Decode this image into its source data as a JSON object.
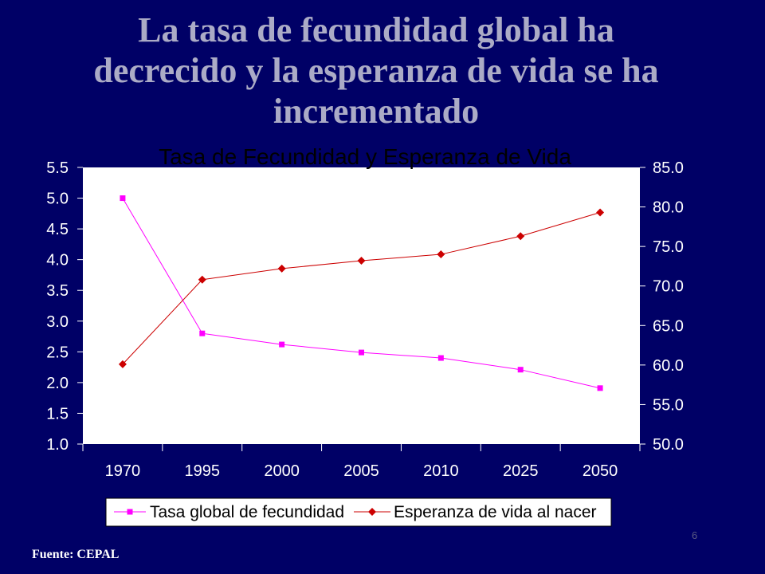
{
  "slide": {
    "title_lines": [
      "La tasa de fecundidad global ha",
      "decrecido y la esperanza de vida se ha",
      "incrementado"
    ],
    "source": "Fuente: CEPAL",
    "page_number": "6"
  },
  "colors": {
    "background": "#000066",
    "title": "#ababc6",
    "plot_background": "#ffffff",
    "axis_ticks": "#ffffff"
  },
  "chart_data": {
    "type": "line",
    "title": "Tasa de Fecundidad y Esperanza de Vida",
    "categories": [
      "1970",
      "1995",
      "2000",
      "2005",
      "2010",
      "2025",
      "2050"
    ],
    "series": [
      {
        "name": "Tasa global de fecundidad",
        "axis": "left",
        "color": "#ff00ff",
        "values": [
          5.0,
          2.8,
          2.62,
          2.49,
          2.4,
          2.21,
          1.91
        ]
      },
      {
        "name": "Esperanza de vida al nacer",
        "axis": "right",
        "color": "#cc0000",
        "values": [
          60.1,
          70.8,
          72.2,
          73.2,
          74.0,
          76.3,
          79.3
        ]
      }
    ],
    "y_left": {
      "lim": [
        1.0,
        5.5
      ],
      "ticks": [
        "1.0",
        "1.5",
        "2.0",
        "2.5",
        "3.0",
        "3.5",
        "4.0",
        "4.5",
        "5.0",
        "5.5"
      ]
    },
    "y_right": {
      "lim": [
        50.0,
        85.0
      ],
      "ticks": [
        "50.0",
        "55.0",
        "60.0",
        "65.0",
        "70.0",
        "75.0",
        "80.0",
        "85.0"
      ]
    },
    "grid": false,
    "legend_position": "bottom"
  }
}
